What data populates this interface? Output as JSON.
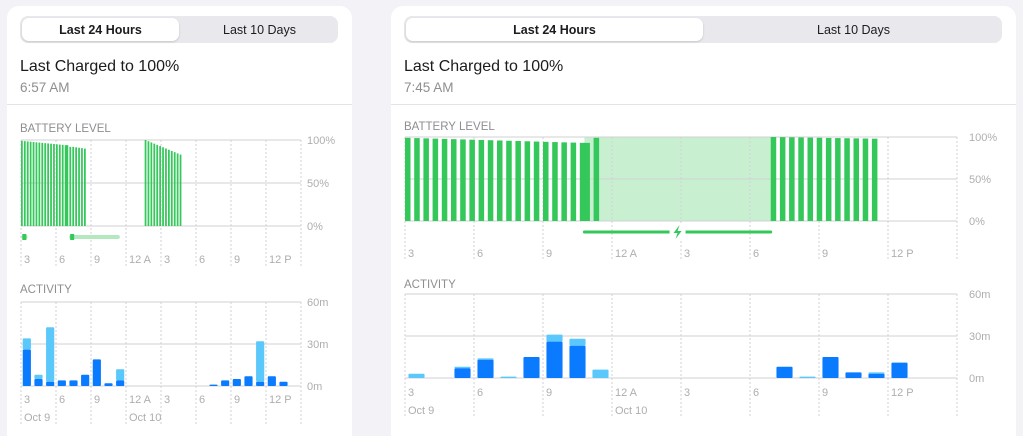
{
  "left_panel": {
    "tabs": [
      "Last 24 Hours",
      "Last 10 Days"
    ],
    "active_tab": 0,
    "title": "Last Charged to 100%",
    "time": "6:57 AM",
    "battery_section": "BATTERY LEVEL",
    "activity_section": "ACTIVITY",
    "battery_axis": [
      "100%",
      "50%",
      "0%"
    ],
    "activity_axis": [
      "60m",
      "30m",
      "0m"
    ],
    "time_ticks": [
      "3",
      "6",
      "9",
      "12 A",
      "3",
      "6",
      "9",
      "12 P"
    ],
    "date_labels": [
      "Oct 9",
      "Oct 10"
    ]
  },
  "right_panel": {
    "tabs": [
      "Last 24 Hours",
      "Last 10 Days"
    ],
    "active_tab": 0,
    "title": "Last Charged to 100%",
    "time": "7:45 AM",
    "battery_section": "BATTERY LEVEL",
    "activity_section": "ACTIVITY",
    "battery_axis": [
      "100%",
      "50%",
      "0%"
    ],
    "activity_axis": [
      "60m",
      "30m",
      "0m"
    ],
    "time_ticks": [
      "3",
      "6",
      "9",
      "12 A",
      "3",
      "6",
      "9",
      "12 P"
    ],
    "date_labels": [
      "Oct 9",
      "Oct 10"
    ]
  },
  "colors": {
    "battery_green": "#34c759",
    "charging_fill": "#c8efd0",
    "screen_on_dark": "#0a7aff",
    "screen_off_light": "#5ac8fa",
    "grid": "#d1d1d6",
    "axis_text": "#aeaeb2"
  },
  "chart_data": [
    {
      "type": "bar",
      "panel": "left",
      "name": "battery_level",
      "ylim": [
        0,
        100
      ],
      "segments": [
        {
          "from": 0,
          "to": 3.9,
          "start_level": 99,
          "end_level": 94
        },
        {
          "from": 3.9,
          "to": 4.4,
          "start_level": 94,
          "end_level": 92
        },
        {
          "from": 4.4,
          "to": 5.6,
          "start_level": 92,
          "end_level": 90
        },
        {
          "from": 10.6,
          "to": 13.8,
          "start_level": 100,
          "end_level": 83
        }
      ],
      "charging_ranges": [
        [
          0.2,
          0.4
        ],
        [
          4.3,
          8.3
        ]
      ]
    },
    {
      "type": "bar",
      "panel": "left",
      "name": "activity_minutes",
      "ylim": [
        0,
        60
      ],
      "bars": [
        {
          "hour": 0,
          "screen_on": 26,
          "screen_off": 34
        },
        {
          "hour": 1,
          "screen_on": 5,
          "screen_off": 8
        },
        {
          "hour": 2,
          "screen_on": 3,
          "screen_off": 42
        },
        {
          "hour": 3,
          "screen_on": 4,
          "screen_off": 4
        },
        {
          "hour": 4,
          "screen_on": 4,
          "screen_off": 4
        },
        {
          "hour": 5,
          "screen_on": 8,
          "screen_off": 8
        },
        {
          "hour": 6,
          "screen_on": 19,
          "screen_off": 19
        },
        {
          "hour": 7,
          "screen_on": 2,
          "screen_off": 2
        },
        {
          "hour": 8,
          "screen_on": 4,
          "screen_off": 12
        },
        {
          "hour": 16,
          "screen_on": 1,
          "screen_off": 1
        },
        {
          "hour": 17,
          "screen_on": 4,
          "screen_off": 4
        },
        {
          "hour": 18,
          "screen_on": 5,
          "screen_off": 5
        },
        {
          "hour": 19,
          "screen_on": 7,
          "screen_off": 7
        },
        {
          "hour": 20,
          "screen_on": 3,
          "screen_off": 32
        },
        {
          "hour": 21,
          "screen_on": 7,
          "screen_off": 7
        },
        {
          "hour": 22,
          "screen_on": 3,
          "screen_off": 3
        }
      ]
    },
    {
      "type": "bar",
      "panel": "right",
      "name": "battery_level",
      "ylim": [
        0,
        100
      ],
      "segments": [
        {
          "from": 0,
          "to": 7.8,
          "start_level": 99,
          "end_level": 93
        },
        {
          "from": 7.8,
          "to": 8.6,
          "start_level": 93,
          "end_level": 99
        },
        {
          "from": 15.9,
          "to": 20.7,
          "start_level": 100,
          "end_level": 98
        }
      ],
      "charging_ranges": [
        [
          7.8,
          15.9
        ]
      ]
    },
    {
      "type": "bar",
      "panel": "right",
      "name": "activity_minutes",
      "ylim": [
        0,
        60
      ],
      "bars": [
        {
          "hour": 0,
          "screen_on": 0,
          "screen_off": 3
        },
        {
          "hour": 2,
          "screen_on": 7,
          "screen_off": 8
        },
        {
          "hour": 3,
          "screen_on": 13,
          "screen_off": 14
        },
        {
          "hour": 4,
          "screen_on": 0,
          "screen_off": 1
        },
        {
          "hour": 5,
          "screen_on": 15,
          "screen_off": 15
        },
        {
          "hour": 6,
          "screen_on": 26,
          "screen_off": 31
        },
        {
          "hour": 7,
          "screen_on": 23,
          "screen_off": 28
        },
        {
          "hour": 8,
          "screen_on": 0,
          "screen_off": 6
        },
        {
          "hour": 16,
          "screen_on": 8,
          "screen_off": 8
        },
        {
          "hour": 17,
          "screen_on": 0,
          "screen_off": 1
        },
        {
          "hour": 18,
          "screen_on": 15,
          "screen_off": 15
        },
        {
          "hour": 19,
          "screen_on": 4,
          "screen_off": 4
        },
        {
          "hour": 20,
          "screen_on": 3,
          "screen_off": 4
        },
        {
          "hour": 21,
          "screen_on": 11,
          "screen_off": 11
        }
      ]
    }
  ]
}
